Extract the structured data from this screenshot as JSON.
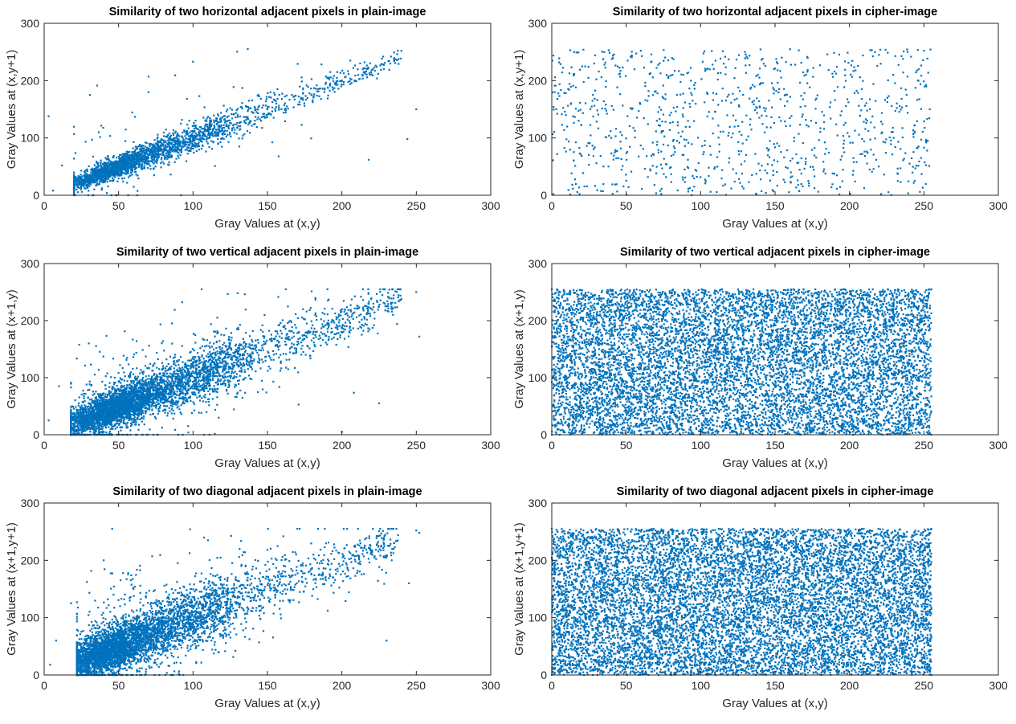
{
  "accent_color": "#0072BD",
  "chart_data": [
    {
      "type": "scatter",
      "title": "Similarity of two horizontal adjacent pixels in plain-image",
      "xlabel": "Gray Values at (x,y)",
      "ylabel": "Gray Values at (x,y+1)",
      "xlim": [
        0,
        300
      ],
      "ylim": [
        0,
        300
      ],
      "xticks": [
        "0",
        "50",
        "100",
        "150",
        "200",
        "250",
        "300"
      ],
      "yticks": [
        "0",
        "100",
        "200",
        "300"
      ],
      "grid": false,
      "distribution": {
        "kind": "correlated",
        "n": 2600,
        "x_range": [
          20,
          240
        ],
        "slope": 1.0,
        "intercept": 0,
        "spread": 12,
        "outlier_fraction": 0.04
      },
      "points": [
        [
          3,
          138
        ],
        [
          6,
          8
        ],
        [
          12,
          52
        ],
        [
          250,
          150
        ],
        [
          244,
          98
        ],
        [
          240,
          252
        ],
        [
          218,
          62
        ],
        [
          100,
          233
        ],
        [
          233,
          242
        ],
        [
          236,
          237
        ],
        [
          30,
          30
        ],
        [
          50,
          50
        ],
        [
          100,
          100
        ],
        [
          150,
          150
        ],
        [
          200,
          200
        ]
      ]
    },
    {
      "type": "scatter",
      "title": "Similarity of two horizontal adjacent pixels in cipher-image",
      "xlabel": "Gray Values at (x,y)",
      "ylabel": "Gray Values at (x,y+1)",
      "xlim": [
        0,
        300
      ],
      "ylim": [
        0,
        300
      ],
      "xticks": [
        "0",
        "50",
        "100",
        "150",
        "200",
        "250",
        "300"
      ],
      "yticks": [
        "0",
        "100",
        "200",
        "300"
      ],
      "grid": false,
      "distribution": {
        "kind": "uniform",
        "n": 1000,
        "x_range": [
          0,
          255
        ],
        "y_range": [
          0,
          255
        ]
      },
      "points": [
        [
          2,
          180
        ],
        [
          15,
          250
        ],
        [
          250,
          252
        ],
        [
          254,
          150
        ],
        [
          1,
          2
        ],
        [
          128,
          128
        ]
      ]
    },
    {
      "type": "scatter",
      "title": "Similarity of two vertical adjacent pixels in plain-image",
      "xlabel": "Gray Values at (x,y)",
      "ylabel": "Gray Values at (x+1,y)",
      "xlim": [
        0,
        300
      ],
      "ylim": [
        0,
        300
      ],
      "xticks": [
        "0",
        "50",
        "100",
        "150",
        "200",
        "250",
        "300"
      ],
      "yticks": [
        "0",
        "100",
        "200",
        "300"
      ],
      "grid": false,
      "distribution": {
        "kind": "correlated",
        "n": 4800,
        "x_range": [
          18,
          240
        ],
        "slope": 1.0,
        "intercept": 0,
        "spread": 22,
        "outlier_fraction": 0.08
      },
      "points": [
        [
          3,
          25
        ],
        [
          10,
          85
        ],
        [
          20,
          20
        ],
        [
          250,
          250
        ],
        [
          252,
          172
        ],
        [
          200,
          5
        ],
        [
          240,
          238
        ],
        [
          225,
          55
        ],
        [
          30,
          160
        ],
        [
          130,
          248
        ]
      ]
    },
    {
      "type": "scatter",
      "title": "Similarity of two vertical adjacent pixels in cipher-image",
      "xlabel": "Gray Values at (x,y)",
      "ylabel": "Gray Values at (x+1,y)",
      "xlim": [
        0,
        300
      ],
      "ylim": [
        0,
        300
      ],
      "xticks": [
        "0",
        "50",
        "100",
        "150",
        "200",
        "250",
        "300"
      ],
      "yticks": [
        "0",
        "100",
        "200",
        "300"
      ],
      "grid": false,
      "distribution": {
        "kind": "uniform",
        "n": 9000,
        "x_range": [
          0,
          255
        ],
        "y_range": [
          0,
          255
        ]
      },
      "points": [
        [
          0,
          0
        ],
        [
          255,
          255
        ],
        [
          0,
          255
        ],
        [
          255,
          0
        ]
      ]
    },
    {
      "type": "scatter",
      "title": "Similarity of two diagonal adjacent pixels in plain-image",
      "xlabel": "Gray Values at (x,y)",
      "ylabel": "Gray Values at (x+1,y+1)",
      "xlim": [
        0,
        300
      ],
      "ylim": [
        0,
        300
      ],
      "xticks": [
        "0",
        "50",
        "100",
        "150",
        "200",
        "250",
        "300"
      ],
      "yticks": [
        "0",
        "100",
        "200",
        "300"
      ],
      "grid": false,
      "distribution": {
        "kind": "correlated",
        "n": 4800,
        "x_range": [
          22,
          238
        ],
        "slope": 1.0,
        "intercept": 0,
        "spread": 26,
        "outlier_fraction": 0.12
      },
      "points": [
        [
          4,
          18
        ],
        [
          8,
          60
        ],
        [
          18,
          125
        ],
        [
          250,
          252
        ],
        [
          252,
          248
        ],
        [
          245,
          160
        ],
        [
          230,
          60
        ],
        [
          110,
          235
        ],
        [
          40,
          200
        ],
        [
          60,
          150
        ]
      ]
    },
    {
      "type": "scatter",
      "title": "Similarity of two diagonal adjacent pixels in cipher-image",
      "xlabel": "Gray Values at (x,y)",
      "ylabel": "Gray Values at (x+1,y+1)",
      "xlim": [
        0,
        300
      ],
      "ylim": [
        0,
        300
      ],
      "xticks": [
        "0",
        "50",
        "100",
        "150",
        "200",
        "250",
        "300"
      ],
      "yticks": [
        "0",
        "100",
        "200",
        "300"
      ],
      "grid": false,
      "distribution": {
        "kind": "uniform",
        "n": 10000,
        "x_range": [
          0,
          255
        ],
        "y_range": [
          0,
          255
        ]
      },
      "points": [
        [
          0,
          0
        ],
        [
          255,
          255
        ],
        [
          0,
          255
        ],
        [
          255,
          0
        ]
      ]
    }
  ]
}
